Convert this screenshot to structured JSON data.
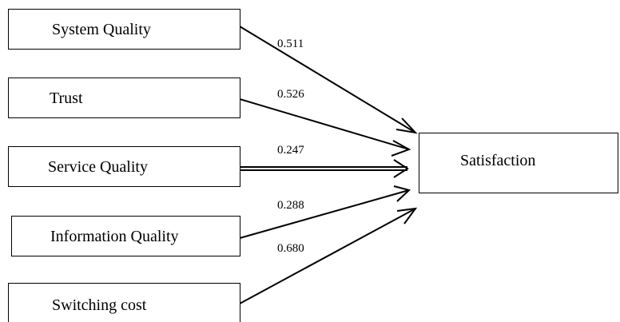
{
  "predictors": [
    {
      "label": "System Quality",
      "coefficient": "0.511"
    },
    {
      "label": "Trust",
      "coefficient": "0.526"
    },
    {
      "label": "Service Quality",
      "coefficient": "0.247"
    },
    {
      "label": "Information Quality",
      "coefficient": "0.288"
    },
    {
      "label": "Switching cost",
      "coefficient": "0.680"
    }
  ],
  "outcome": {
    "label": "Satisfaction"
  }
}
